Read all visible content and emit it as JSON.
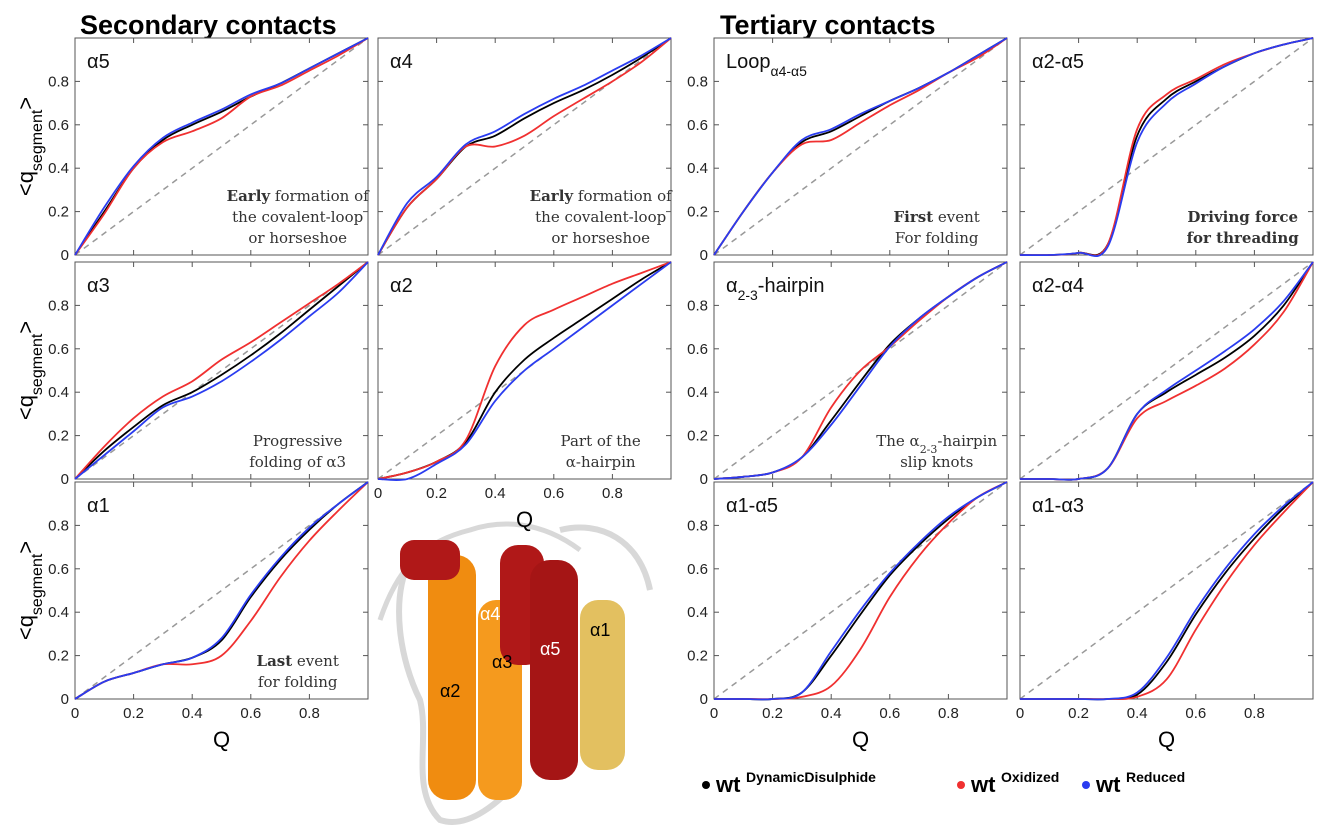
{
  "headings": {
    "secondary": "Secondary contacts",
    "tertiary": "Tertiary contacts"
  },
  "legend_prefix": "wt",
  "structure_labels": [
    "α4",
    "α3",
    "α5",
    "α2",
    "α1"
  ],
  "chart_data": [
    {
      "type": "line",
      "title": [
        {
          "text": "α5"
        }
      ],
      "y_label": [
        {
          "text": "<q"
        },
        {
          "text": "segment",
          "style": "sub"
        },
        {
          "text": ">"
        }
      ],
      "annotation": [
        [
          {
            "text": "Early",
            "style": "bold"
          },
          {
            "text": " formation of"
          }
        ],
        [
          {
            "text": "the covalent-loop"
          }
        ],
        [
          {
            "text": "or horseshoe"
          }
        ]
      ],
      "x": [
        0,
        0.1,
        0.2,
        0.3,
        0.4,
        0.5,
        0.6,
        0.7,
        0.8,
        0.9,
        1
      ],
      "xlim": [
        0,
        1
      ],
      "ylim": [
        0,
        1
      ],
      "xticks": [
        0,
        0.2,
        0.4,
        0.6,
        0.8
      ],
      "yticks": [
        0,
        0.2,
        0.4,
        0.6,
        0.8
      ],
      "series": [
        {
          "name": "DynamicDisulphide",
          "color": "#000000",
          "values": [
            0,
            0.2,
            0.4,
            0.53,
            0.6,
            0.66,
            0.73,
            0.79,
            0.86,
            0.93,
            1
          ]
        },
        {
          "name": "Oxidized",
          "color": "#f03030",
          "values": [
            0,
            0.19,
            0.4,
            0.52,
            0.57,
            0.63,
            0.73,
            0.78,
            0.85,
            0.92,
            1
          ]
        },
        {
          "name": "Reduced",
          "color": "#2a3cf0",
          "values": [
            0,
            0.22,
            0.41,
            0.54,
            0.61,
            0.67,
            0.74,
            0.79,
            0.86,
            0.93,
            1
          ]
        }
      ]
    },
    {
      "type": "line",
      "title": [
        {
          "text": "α4"
        }
      ],
      "annotation": [
        [
          {
            "text": "Early",
            "style": "bold"
          },
          {
            "text": " formation of"
          }
        ],
        [
          {
            "text": "the covalent-loop"
          }
        ],
        [
          {
            "text": "or horseshoe"
          }
        ]
      ],
      "x": [
        0,
        0.1,
        0.2,
        0.3,
        0.4,
        0.5,
        0.6,
        0.7,
        0.8,
        0.9,
        1
      ],
      "xlim": [
        0,
        1
      ],
      "ylim": [
        0,
        1
      ],
      "xticks": [
        0,
        0.2,
        0.4,
        0.6,
        0.8
      ],
      "yticks": [
        0,
        0.2,
        0.4,
        0.6,
        0.8
      ],
      "series": [
        {
          "name": "DynamicDisulphide",
          "color": "#000000",
          "values": [
            0,
            0.22,
            0.35,
            0.5,
            0.55,
            0.63,
            0.7,
            0.76,
            0.83,
            0.91,
            1
          ]
        },
        {
          "name": "Oxidized",
          "color": "#f03030",
          "values": [
            0,
            0.22,
            0.35,
            0.5,
            0.5,
            0.55,
            0.64,
            0.72,
            0.8,
            0.89,
            1
          ]
        },
        {
          "name": "Reduced",
          "color": "#2a3cf0",
          "values": [
            0,
            0.24,
            0.36,
            0.51,
            0.57,
            0.65,
            0.72,
            0.78,
            0.85,
            0.92,
            1
          ]
        }
      ]
    },
    {
      "type": "line",
      "title": [
        {
          "text": "Loop"
        },
        {
          "text": "α4-α5",
          "style": "sub"
        }
      ],
      "annotation": [
        [
          {
            "text": "First",
            "style": "bold"
          },
          {
            "text": " event"
          }
        ],
        [
          {
            "text": "For folding"
          }
        ]
      ],
      "x": [
        0,
        0.1,
        0.2,
        0.3,
        0.4,
        0.5,
        0.6,
        0.7,
        0.8,
        0.9,
        1
      ],
      "xlim": [
        0,
        1
      ],
      "ylim": [
        0,
        1
      ],
      "xticks": [
        0,
        0.2,
        0.4,
        0.6,
        0.8
      ],
      "yticks": [
        0,
        0.2,
        0.4,
        0.6,
        0.8
      ],
      "series": [
        {
          "name": "DynamicDisulphide",
          "color": "#000000",
          "values": [
            0,
            0.2,
            0.38,
            0.52,
            0.57,
            0.64,
            0.71,
            0.77,
            0.84,
            0.92,
            1
          ]
        },
        {
          "name": "Oxidized",
          "color": "#f03030",
          "values": [
            0,
            0.2,
            0.38,
            0.51,
            0.53,
            0.61,
            0.69,
            0.76,
            0.84,
            0.91,
            1
          ]
        },
        {
          "name": "Reduced",
          "color": "#2a3cf0",
          "values": [
            0,
            0.2,
            0.38,
            0.53,
            0.58,
            0.65,
            0.71,
            0.77,
            0.84,
            0.92,
            1
          ]
        }
      ]
    },
    {
      "type": "line",
      "title": [
        {
          "text": "α2-α5"
        }
      ],
      "annotation": [
        [
          {
            "text": "Driving force",
            "style": "bold"
          }
        ],
        [
          {
            "text": "for threading",
            "style": "bold"
          }
        ]
      ],
      "x": [
        0,
        0.1,
        0.2,
        0.3,
        0.4,
        0.5,
        0.6,
        0.7,
        0.8,
        0.9,
        1
      ],
      "xlim": [
        0,
        1
      ],
      "ylim": [
        0,
        1
      ],
      "xticks": [
        0,
        0.2,
        0.4,
        0.6,
        0.8
      ],
      "yticks": [
        0,
        0.2,
        0.4,
        0.6,
        0.8
      ],
      "series": [
        {
          "name": "DynamicDisulphide",
          "color": "#000000",
          "values": [
            0,
            0,
            0.01,
            0.05,
            0.55,
            0.72,
            0.8,
            0.87,
            0.93,
            0.97,
            1
          ]
        },
        {
          "name": "Oxidized",
          "color": "#f03030",
          "values": [
            0,
            0,
            0.01,
            0.05,
            0.58,
            0.74,
            0.81,
            0.88,
            0.93,
            0.97,
            1
          ]
        },
        {
          "name": "Reduced",
          "color": "#2a3cf0",
          "values": [
            0,
            0,
            0.01,
            0.04,
            0.52,
            0.7,
            0.79,
            0.87,
            0.93,
            0.97,
            1
          ]
        }
      ]
    },
    {
      "type": "line",
      "title": [
        {
          "text": "α3"
        }
      ],
      "y_label": [
        {
          "text": "<q"
        },
        {
          "text": "segment",
          "style": "sub"
        },
        {
          "text": ">"
        }
      ],
      "annotation": [
        [
          {
            "text": "Progressive"
          }
        ],
        [
          {
            "text": "folding of α3"
          }
        ]
      ],
      "x": [
        0,
        0.1,
        0.2,
        0.3,
        0.4,
        0.5,
        0.6,
        0.7,
        0.8,
        0.9,
        1
      ],
      "xlim": [
        0,
        1
      ],
      "ylim": [
        0,
        1
      ],
      "xticks": [
        0,
        0.2,
        0.4,
        0.6,
        0.8
      ],
      "yticks": [
        0,
        0.2,
        0.4,
        0.6,
        0.8
      ],
      "series": [
        {
          "name": "DynamicDisulphide",
          "color": "#000000",
          "values": [
            0,
            0.13,
            0.24,
            0.34,
            0.4,
            0.48,
            0.57,
            0.67,
            0.78,
            0.89,
            1
          ]
        },
        {
          "name": "Oxidized",
          "color": "#f03030",
          "values": [
            0,
            0.15,
            0.28,
            0.38,
            0.45,
            0.55,
            0.63,
            0.72,
            0.81,
            0.9,
            1
          ]
        },
        {
          "name": "Reduced",
          "color": "#2a3cf0",
          "values": [
            0,
            0.11,
            0.22,
            0.33,
            0.38,
            0.45,
            0.54,
            0.64,
            0.75,
            0.86,
            1
          ]
        }
      ]
    },
    {
      "type": "line",
      "title": [
        {
          "text": "α2"
        }
      ],
      "x_label": "Q",
      "annotation": [
        [
          {
            "text": "Part of the"
          }
        ],
        [
          {
            "text": "α-hairpin"
          }
        ]
      ],
      "x": [
        0,
        0.1,
        0.2,
        0.3,
        0.4,
        0.5,
        0.6,
        0.7,
        0.8,
        0.9,
        1
      ],
      "xlim": [
        0,
        1
      ],
      "ylim": [
        0,
        1
      ],
      "xticks": [
        0,
        0.2,
        0.4,
        0.6,
        0.8
      ],
      "yticks": [
        0,
        0.2,
        0.4,
        0.6,
        0.8
      ],
      "series": [
        {
          "name": "DynamicDisulphide",
          "color": "#000000",
          "values": [
            0,
            0.03,
            0.08,
            0.17,
            0.4,
            0.55,
            0.65,
            0.74,
            0.83,
            0.92,
            1
          ]
        },
        {
          "name": "Oxidized",
          "color": "#f03030",
          "values": [
            0,
            0.03,
            0.08,
            0.18,
            0.52,
            0.71,
            0.78,
            0.84,
            0.9,
            0.95,
            1
          ]
        },
        {
          "name": "Reduced",
          "color": "#2a3cf0",
          "values": [
            0,
            0,
            0.07,
            0.16,
            0.36,
            0.5,
            0.6,
            0.7,
            0.8,
            0.9,
            1
          ]
        }
      ]
    },
    {
      "type": "line",
      "title": [
        {
          "text": "α"
        },
        {
          "text": "2-3",
          "style": "sub"
        },
        {
          "text": "-hairpin"
        }
      ],
      "annotation": [
        [
          {
            "text": "The α"
          },
          {
            "text": "2-3",
            "style": "sub"
          },
          {
            "text": "-hairpin"
          }
        ],
        [
          {
            "text": "slip knots"
          }
        ]
      ],
      "x": [
        0,
        0.1,
        0.2,
        0.3,
        0.4,
        0.5,
        0.6,
        0.7,
        0.8,
        0.9,
        1
      ],
      "xlim": [
        0,
        1
      ],
      "ylim": [
        0,
        1
      ],
      "xticks": [
        0,
        0.2,
        0.4,
        0.6,
        0.8
      ],
      "yticks": [
        0,
        0.2,
        0.4,
        0.6,
        0.8
      ],
      "series": [
        {
          "name": "DynamicDisulphide",
          "color": "#000000",
          "values": [
            0,
            0.01,
            0.03,
            0.1,
            0.27,
            0.45,
            0.62,
            0.74,
            0.84,
            0.93,
            1
          ]
        },
        {
          "name": "Oxidized",
          "color": "#f03030",
          "values": [
            0,
            0.01,
            0.03,
            0.1,
            0.33,
            0.5,
            0.61,
            0.73,
            0.84,
            0.93,
            1
          ]
        },
        {
          "name": "Reduced",
          "color": "#2a3cf0",
          "values": [
            0,
            0.01,
            0.03,
            0.1,
            0.25,
            0.43,
            0.61,
            0.74,
            0.84,
            0.93,
            1
          ]
        }
      ]
    },
    {
      "type": "line",
      "title": [
        {
          "text": "α2-α4"
        }
      ],
      "x": [
        0,
        0.1,
        0.2,
        0.3,
        0.4,
        0.5,
        0.6,
        0.7,
        0.8,
        0.9,
        1
      ],
      "xlim": [
        0,
        1
      ],
      "ylim": [
        0,
        1
      ],
      "xticks": [
        0,
        0.2,
        0.4,
        0.6,
        0.8
      ],
      "yticks": [
        0,
        0.2,
        0.4,
        0.6,
        0.8
      ],
      "series": [
        {
          "name": "DynamicDisulphide",
          "color": "#000000",
          "values": [
            0,
            0,
            0,
            0.05,
            0.3,
            0.4,
            0.48,
            0.56,
            0.66,
            0.8,
            1
          ]
        },
        {
          "name": "Oxidized",
          "color": "#f03030",
          "values": [
            0,
            0,
            0,
            0.05,
            0.28,
            0.36,
            0.43,
            0.51,
            0.62,
            0.77,
            1
          ]
        },
        {
          "name": "Reduced",
          "color": "#2a3cf0",
          "values": [
            0,
            0,
            0,
            0.05,
            0.3,
            0.41,
            0.5,
            0.59,
            0.69,
            0.82,
            1
          ]
        }
      ]
    },
    {
      "type": "line",
      "title": [
        {
          "text": "α1"
        }
      ],
      "x_label": "Q",
      "y_label": [
        {
          "text": "<q"
        },
        {
          "text": "segment",
          "style": "sub"
        },
        {
          "text": ">"
        }
      ],
      "annotation": [
        [
          {
            "text": "Last",
            "style": "bold"
          },
          {
            "text": " event"
          }
        ],
        [
          {
            "text": "for folding"
          }
        ]
      ],
      "x": [
        0,
        0.1,
        0.2,
        0.3,
        0.4,
        0.5,
        0.6,
        0.7,
        0.8,
        0.9,
        1
      ],
      "xlim": [
        0,
        1
      ],
      "ylim": [
        0,
        1
      ],
      "xticks": [
        0,
        0.2,
        0.4,
        0.6,
        0.8
      ],
      "yticks": [
        0,
        0.2,
        0.4,
        0.6,
        0.8
      ],
      "series": [
        {
          "name": "DynamicDisulphide",
          "color": "#000000",
          "values": [
            0,
            0.08,
            0.12,
            0.16,
            0.19,
            0.27,
            0.47,
            0.64,
            0.78,
            0.9,
            1
          ]
        },
        {
          "name": "Oxidized",
          "color": "#f03030",
          "values": [
            0,
            0.08,
            0.12,
            0.16,
            0.16,
            0.2,
            0.36,
            0.56,
            0.73,
            0.87,
            1
          ]
        },
        {
          "name": "Reduced",
          "color": "#2a3cf0",
          "values": [
            0,
            0.08,
            0.12,
            0.16,
            0.19,
            0.28,
            0.48,
            0.65,
            0.79,
            0.9,
            1
          ]
        }
      ]
    },
    {
      "type": "line",
      "title": [
        {
          "text": "α1-α5"
        }
      ],
      "x_label": "Q",
      "x": [
        0,
        0.1,
        0.2,
        0.3,
        0.4,
        0.5,
        0.6,
        0.7,
        0.8,
        0.9,
        1
      ],
      "xlim": [
        0,
        1
      ],
      "ylim": [
        0,
        1
      ],
      "xticks": [
        0,
        0.2,
        0.4,
        0.6,
        0.8
      ],
      "yticks": [
        0,
        0.2,
        0.4,
        0.6,
        0.8
      ],
      "series": [
        {
          "name": "DynamicDisulphide",
          "color": "#000000",
          "values": [
            0,
            0,
            0,
            0.03,
            0.2,
            0.39,
            0.57,
            0.71,
            0.83,
            0.93,
            1
          ]
        },
        {
          "name": "Oxidized",
          "color": "#f03030",
          "values": [
            0,
            0,
            0,
            0.01,
            0.06,
            0.23,
            0.47,
            0.66,
            0.81,
            0.93,
            1
          ]
        },
        {
          "name": "Reduced",
          "color": "#2a3cf0",
          "values": [
            0,
            0,
            0,
            0.03,
            0.22,
            0.41,
            0.58,
            0.72,
            0.84,
            0.93,
            1
          ]
        }
      ]
    },
    {
      "type": "line",
      "title": [
        {
          "text": "α1-α3"
        }
      ],
      "x_label": "Q",
      "x": [
        0,
        0.1,
        0.2,
        0.3,
        0.4,
        0.5,
        0.6,
        0.7,
        0.8,
        0.9,
        1
      ],
      "xlim": [
        0,
        1
      ],
      "ylim": [
        0,
        1
      ],
      "xticks": [
        0,
        0.2,
        0.4,
        0.6,
        0.8
      ],
      "yticks": [
        0,
        0.2,
        0.4,
        0.6,
        0.8
      ],
      "series": [
        {
          "name": "DynamicDisulphide",
          "color": "#000000",
          "values": [
            0,
            0,
            0,
            0,
            0.02,
            0.17,
            0.39,
            0.58,
            0.74,
            0.88,
            1
          ]
        },
        {
          "name": "Oxidized",
          "color": "#f03030",
          "values": [
            0,
            0,
            0,
            0,
            0.01,
            0.09,
            0.32,
            0.53,
            0.71,
            0.86,
            1
          ]
        },
        {
          "name": "Reduced",
          "color": "#2a3cf0",
          "values": [
            0,
            0,
            0,
            0,
            0.03,
            0.19,
            0.41,
            0.6,
            0.76,
            0.89,
            1
          ]
        }
      ]
    }
  ]
}
